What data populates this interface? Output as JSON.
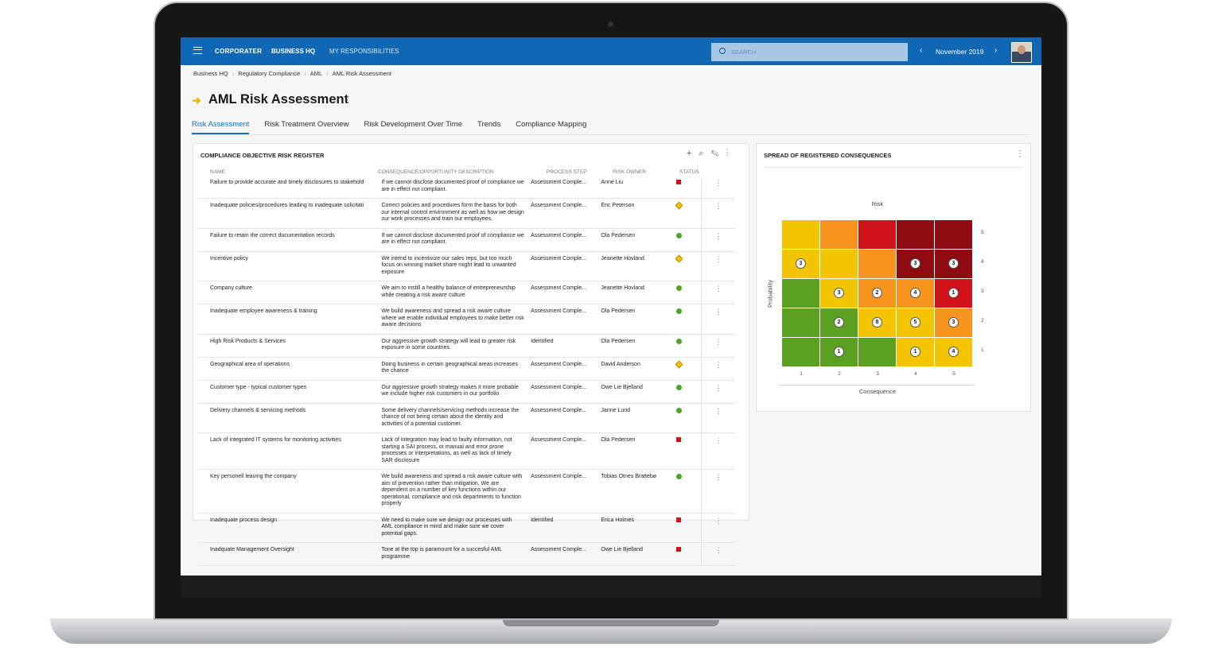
{
  "header": {
    "logo": "CORPORATER",
    "nav": [
      "BUSINESS HQ",
      "MY RESPONSIBILITIES"
    ],
    "search_placeholder": "SEARCH",
    "period": "November 2019"
  },
  "breadcrumb": [
    "Business HQ",
    "Regulatory Compliance",
    "AML",
    "AML Risk Assessment"
  ],
  "title": "AML Risk Assessment",
  "tabs": [
    "Risk Assessment",
    "Risk Treatment Overview",
    "Risk Development Over Time",
    "Trends",
    "Compliance Mapping"
  ],
  "register": {
    "title": "COMPLIANCE OBJECTIVE RISK REGISTER",
    "columns": [
      "NAME",
      "CONSEQUENCE/OPPORTUNITY DESCRIPTION",
      "PROCESS STEP",
      "RISK OWNER",
      "STATUS"
    ],
    "rows": [
      {
        "name": "Failure to provide accurate and timely disclosures to stakehold",
        "description": "If we cannot disclose documented proof of compliance we are in effect not compliant.",
        "process_step": "Assessment Comple...",
        "risk_owner": "Anne Liu",
        "status": "red"
      },
      {
        "name": "Inadequate policies/procedures leading to inadequate solicitati",
        "description": "Correct policies and procedures form the basis for both our internal control environment as well as how we design our work processes and train our employees.",
        "process_step": "Assessment Comple...",
        "risk_owner": "Eric Peterson",
        "status": "yellow"
      },
      {
        "name": "Failure to retain the correct documentation records",
        "description": "If we cannot disclose documented proof of compliance we are in effect not compliant.",
        "process_step": "Assessment Comple...",
        "risk_owner": "Ola Pedersen",
        "status": "green"
      },
      {
        "name": "Incentive policy",
        "description": "We intend to incentivize our sales reps, but too much focus on winning market share might lead to unwanted exposure",
        "process_step": "Assessment Comple...",
        "risk_owner": "Jeanette Hovland",
        "status": "yellow"
      },
      {
        "name": "Company culture",
        "description": "We aim to instill a healthy balance of entrepreneurship while creating a risk aware culture",
        "process_step": "Assessment Comple...",
        "risk_owner": "Jeanette Hovland",
        "status": "green"
      },
      {
        "name": "Inadequate employee awareness & training",
        "description": "We build awareness and spread a risk aware culture where we enable individual employees to make better risk aware decisions",
        "process_step": "Assessment Comple...",
        "risk_owner": "Ola Pedersen",
        "status": "green"
      },
      {
        "name": "High Risk Products & Services",
        "description": "Our aggressive growth strategy will lead to greater risk exposure in some countries.",
        "process_step": "Identified",
        "risk_owner": "Ola Pedersen",
        "status": "green"
      },
      {
        "name": "Geographical area of operations",
        "description": "Doing business in certain geographical areas increases the chance",
        "process_step": "Assessment Comple...",
        "risk_owner": "David Anderson",
        "status": "yellow"
      },
      {
        "name": "Customer type - typical customer types",
        "description": "Our aggressive growth strategy makes it more probable we include higher risk customers in our portfolio",
        "process_step": "Assessment Comple...",
        "risk_owner": "Owe Lie Bjelland",
        "status": "green"
      },
      {
        "name": "Delivery channels & servicing methods",
        "description": "Some delivery channels/servicing methods increase the chance of not being certain about the identity and activities of a potential customer.",
        "process_step": "Assessment Comple...",
        "risk_owner": "Janne Lund",
        "status": "green"
      },
      {
        "name": "Lack of integrated IT systems for monitoring activities",
        "description": "Lack of integration may lead to faulty information, not starting a SAI process, or manual and error prone processes or interpretations, as well as lack of timely SAR disclosure",
        "process_step": "Assessment Comple...",
        "risk_owner": "Ola Pedersen",
        "status": "red"
      },
      {
        "name": "Key personell leaving the company",
        "description": "We build awareness and spread a risk aware culture with aim of prevention rather than mitigation. We are dependent on a number of key functions within our operational, compliance and risk departments to function properly",
        "process_step": "Assessment Comple...",
        "risk_owner": "Tobias Otnes Brattebø",
        "status": "green"
      },
      {
        "name": "Inadequate process design",
        "description": "We need to make sure we design our processes with AML compliance in mind and make sure we cover potential gaps.",
        "process_step": "Identified",
        "risk_owner": "Erica Holmes",
        "status": "red"
      },
      {
        "name": "Inadquate Management Oversight",
        "description": "Tone at the top is paramount for a succesful AML programme",
        "process_step": "Assessment Comple...",
        "risk_owner": "Owe Lie Bjelland",
        "status": "red"
      }
    ]
  },
  "heatmap": {
    "title": "SPREAD OF REGISTERED CONSEQUENCES",
    "top_label": "Risk",
    "y_label": "Probability",
    "x_label": "Consequence",
    "x_ticks": [
      1,
      2,
      3,
      4,
      5
    ],
    "y_ticks": [
      5,
      4,
      3,
      2,
      1
    ],
    "colors": [
      [
        "#f2c500",
        "#f7941d",
        "#d0121b",
        "#8e0b12",
        "#8e0b12"
      ],
      [
        "#f2c500",
        "#f2c500",
        "#f7941d",
        "#8e0b12",
        "#8e0b12"
      ],
      [
        "#5aa021",
        "#f2c500",
        "#f7941d",
        "#f7941d",
        "#d0121b"
      ],
      [
        "#5aa021",
        "#5aa021",
        "#f2c500",
        "#f2c500",
        "#f7941d"
      ],
      [
        "#5aa021",
        "#5aa021",
        "#5aa021",
        "#f2c500",
        "#f2c500"
      ]
    ],
    "counts": [
      [
        null,
        null,
        null,
        null,
        null
      ],
      [
        3,
        null,
        null,
        3,
        3
      ],
      [
        null,
        3,
        2,
        4,
        1
      ],
      [
        null,
        2,
        8,
        5,
        3
      ],
      [
        null,
        1,
        null,
        1,
        4
      ]
    ]
  }
}
